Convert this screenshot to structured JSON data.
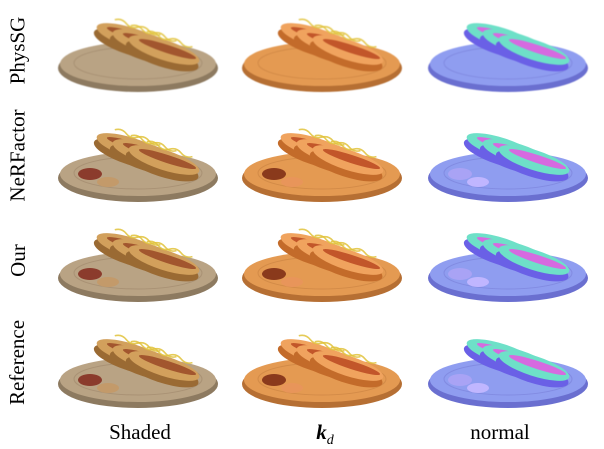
{
  "rows": [
    {
      "label": "PhysSG"
    },
    {
      "label": "NeRFactor"
    },
    {
      "label": "Our"
    },
    {
      "label": "Reference"
    }
  ],
  "columns": [
    {
      "label": "Shaded"
    },
    {
      "label_main": "k",
      "label_sub": "d"
    },
    {
      "label": "normal"
    }
  ]
}
